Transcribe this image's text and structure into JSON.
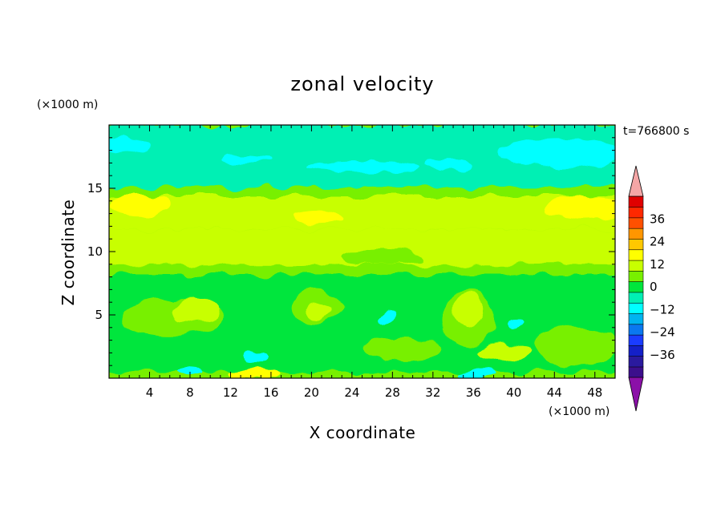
{
  "chart_data": {
    "type": "heatmap",
    "title": "zonal velocity",
    "xlabel": "X coordinate",
    "ylabel": "Z coordinate",
    "x_scale_label": "(×1000 m)",
    "y_scale_label": "(×1000 m)",
    "time_label": "t=766800 s",
    "xlim": [
      0,
      50
    ],
    "ylim": [
      0,
      20
    ],
    "x_ticks": [
      4,
      8,
      12,
      16,
      20,
      24,
      28,
      32,
      36,
      40,
      44,
      48
    ],
    "y_ticks": [
      5,
      10,
      15
    ],
    "colorbar": {
      "ticks": [
        36,
        24,
        12,
        0,
        -12,
        -24,
        -36
      ],
      "levels": [
        -42,
        -36,
        -30,
        -24,
        -18,
        -12,
        -6,
        0,
        6,
        12,
        18,
        24,
        30,
        36,
        42
      ],
      "colors": [
        "#3c0f8c",
        "#2a1a9e",
        "#1420c8",
        "#1a3cff",
        "#0a78f0",
        "#00b4f0",
        "#00ffff",
        "#00f0b4",
        "#00e63c",
        "#78f000",
        "#c8ff00",
        "#ffff00",
        "#ffc800",
        "#ff9600",
        "#ff5000",
        "#ff2800",
        "#e00000"
      ],
      "extend_low_color": "#8b10a8",
      "extend_high_color": "#f4a6a6"
    },
    "field": {
      "background": 0,
      "bands": [
        {
          "z0": 0.0,
          "z1": 0.5,
          "value": 3
        },
        {
          "z0": 0.5,
          "z1": 2.5,
          "value": -2
        },
        {
          "z0": 2.5,
          "z1": 8.2,
          "value": -4
        },
        {
          "z0": 8.2,
          "z1": 9.0,
          "value": 1
        },
        {
          "z0": 9.0,
          "z1": 11.8,
          "value": 7
        },
        {
          "z0": 11.8,
          "z1": 14.4,
          "value": 10
        },
        {
          "z0": 14.4,
          "z1": 15.1,
          "value": 5
        },
        {
          "z0": 15.1,
          "z1": 20.0,
          "value": -11
        }
      ],
      "blobs": [
        {
          "x": 1.5,
          "z": 18.4,
          "rx": 2.5,
          "rz": 0.6,
          "value": -16
        },
        {
          "x": 13.5,
          "z": 17.3,
          "rx": 2.5,
          "rz": 0.3,
          "value": -16
        },
        {
          "x": 25,
          "z": 16.7,
          "rx": 5.5,
          "rz": 0.45,
          "value": -16
        },
        {
          "x": 33.5,
          "z": 16.8,
          "rx": 2.5,
          "rz": 0.5,
          "value": -16
        },
        {
          "x": 44.5,
          "z": 17.8,
          "rx": 6,
          "rz": 1.1,
          "value": -16
        },
        {
          "x": 3,
          "z": 13.7,
          "rx": 3,
          "rz": 0.9,
          "value": 13
        },
        {
          "x": 20.5,
          "z": 12.7,
          "rx": 2.5,
          "rz": 0.5,
          "value": 13
        },
        {
          "x": 47,
          "z": 13.4,
          "rx": 4,
          "rz": 1.0,
          "value": 13
        },
        {
          "x": 27,
          "z": 9.6,
          "rx": 4,
          "rz": 0.6,
          "value": 3
        },
        {
          "x": 6,
          "z": 4.8,
          "rx": 5,
          "rz": 1.5,
          "value": 5
        },
        {
          "x": 8.5,
          "z": 5.3,
          "rx": 2.2,
          "rz": 1.0,
          "value": 9
        },
        {
          "x": 20.5,
          "z": 5.6,
          "rx": 2.5,
          "rz": 1.3,
          "value": 3
        },
        {
          "x": 20.8,
          "z": 5.3,
          "rx": 1.2,
          "rz": 0.7,
          "value": 8
        },
        {
          "x": 35.5,
          "z": 4.7,
          "rx": 2.5,
          "rz": 2.2,
          "value": 3
        },
        {
          "x": 35.5,
          "z": 5.4,
          "rx": 1.5,
          "rz": 1.3,
          "value": 8
        },
        {
          "x": 39,
          "z": 2.1,
          "rx": 2.5,
          "rz": 0.7,
          "value": 8
        },
        {
          "x": 46,
          "z": 2.5,
          "rx": 4,
          "rz": 1.5,
          "value": 3
        },
        {
          "x": 29,
          "z": 2.3,
          "rx": 4,
          "rz": 0.9,
          "value": 2
        },
        {
          "x": 14.5,
          "z": 0.35,
          "rx": 2.5,
          "rz": 0.4,
          "value": 13
        },
        {
          "x": 8,
          "z": 0.45,
          "rx": 1.3,
          "rz": 0.3,
          "value": -16
        },
        {
          "x": 36.5,
          "z": 0.35,
          "rx": 1.8,
          "rz": 0.35,
          "value": -16
        },
        {
          "x": 40.3,
          "z": 4.3,
          "rx": 0.8,
          "rz": 0.5,
          "value": -14
        },
        {
          "x": 27.5,
          "z": 4.8,
          "rx": 1.0,
          "rz": 0.5,
          "value": -14
        },
        {
          "x": 14.5,
          "z": 1.8,
          "rx": 1.2,
          "rz": 0.5,
          "value": -14
        }
      ]
    }
  }
}
